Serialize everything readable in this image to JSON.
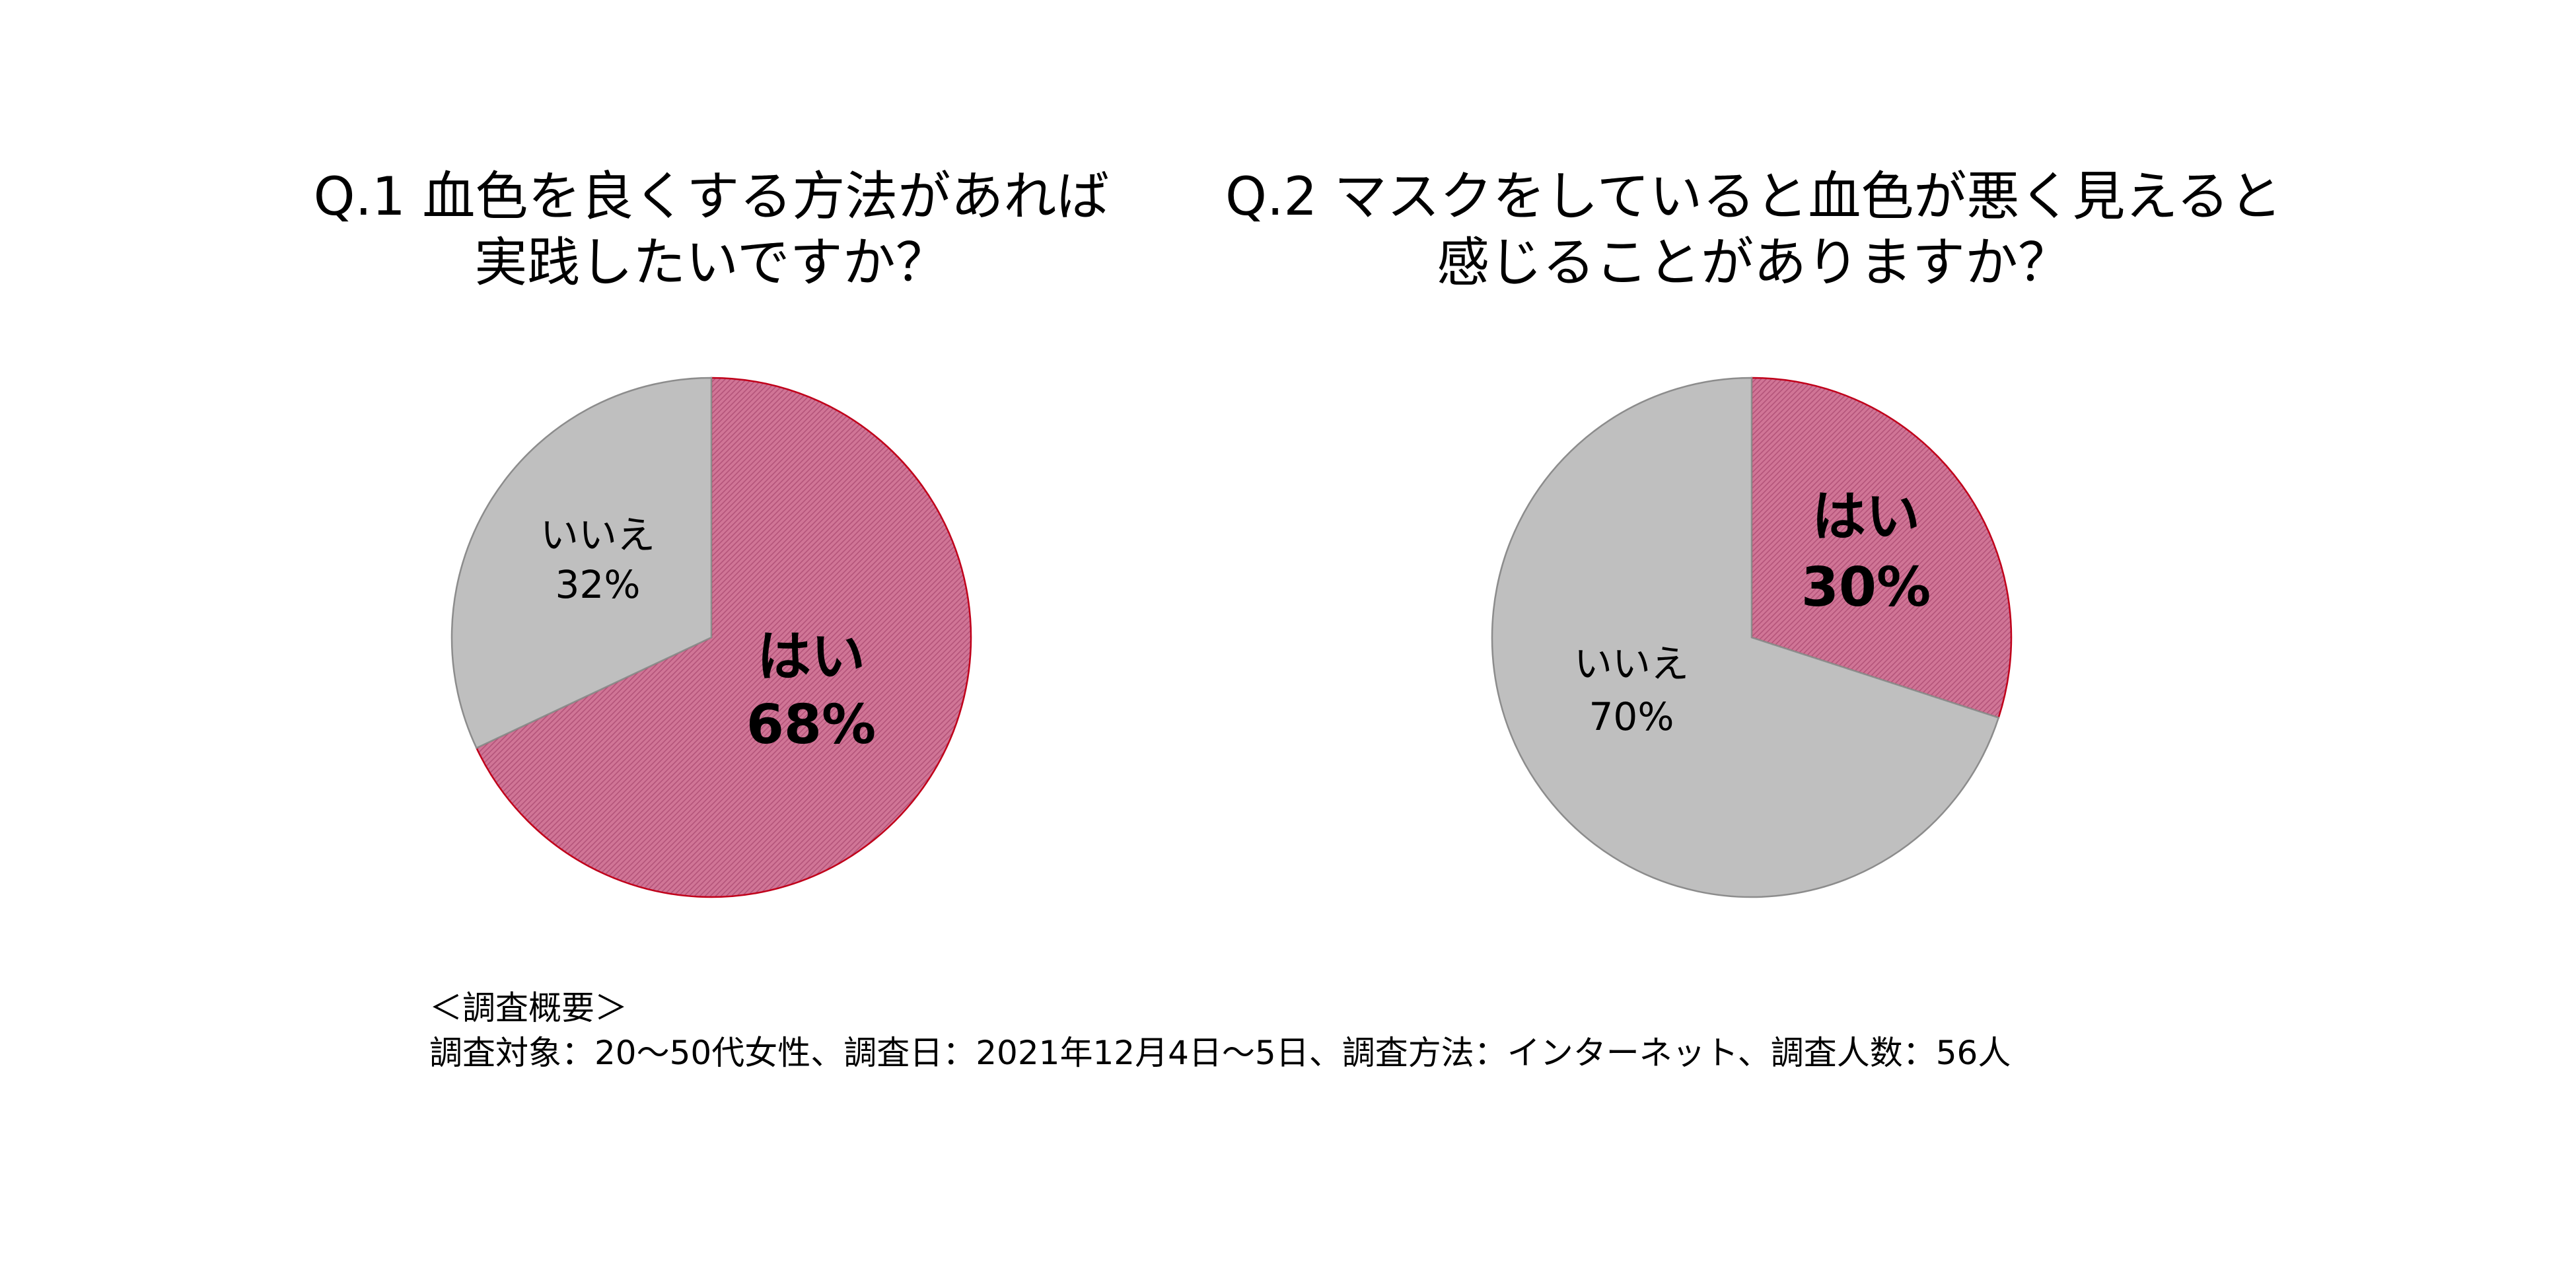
{
  "chart_data": [
    {
      "type": "pie",
      "title_lines": [
        "Q.1 血色を良くする方法があれば",
        "実践したいですか？"
      ],
      "slices": [
        {
          "label": "はい",
          "value": 68,
          "value_label": "68%",
          "color": "#cc6f90",
          "edge": "#c0001a",
          "emphasis": true
        },
        {
          "label": "いいえ",
          "value": 32,
          "value_label": "32%",
          "color": "#bfbfbf",
          "edge": "#8c8c8c",
          "emphasis": false
        }
      ]
    },
    {
      "type": "pie",
      "title_lines": [
        "Q.2 マスクをしていると血色が悪く見えると",
        "感じることがありますか？"
      ],
      "slices": [
        {
          "label": "はい",
          "value": 30,
          "value_label": "30%",
          "color": "#cc6f90",
          "edge": "#c0001a",
          "emphasis": true
        },
        {
          "label": "いいえ",
          "value": 70,
          "value_label": "70%",
          "color": "#bfbfbf",
          "edge": "#8c8c8c",
          "emphasis": false
        }
      ]
    }
  ],
  "notes": {
    "heading": "＜調査概要＞",
    "detail": "調査対象：20～50代女性、調査日：2021年12月4日～5日、調査方法：インターネット、調査人数：56人"
  }
}
